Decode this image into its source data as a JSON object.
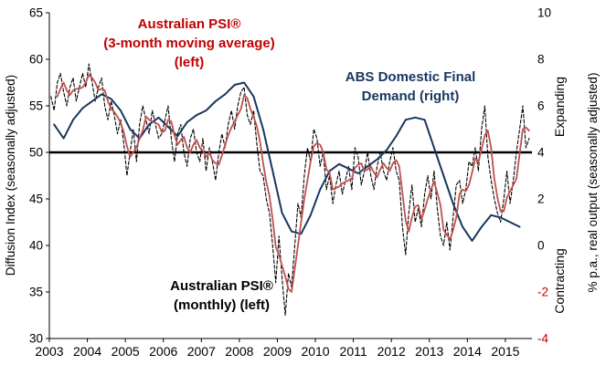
{
  "chart_data": {
    "type": "line",
    "title": "",
    "x_axis": {
      "min": 2003,
      "max": 2015.7,
      "tick_labels": [
        "2003",
        "2004",
        "2005",
        "2006",
        "2007",
        "2008",
        "2009",
        "2010",
        "2011",
        "2012",
        "2013",
        "2014",
        "2015"
      ]
    },
    "left_axis": {
      "label": "Diffusion Index (seasonally adjusted)",
      "min": 30,
      "max": 65,
      "step": 5
    },
    "right_axis": {
      "label": "% p.a., real output (seasonally adjusted)",
      "min": -4,
      "max": 10,
      "step": 2,
      "negative_color": "#c00000"
    },
    "reference_line": {
      "axis": "left",
      "value": 50,
      "color": "#000000"
    },
    "zone_labels": {
      "top": "Expanding",
      "bottom": "Contracting"
    },
    "annotations": {
      "psi_mma": {
        "color": "#c00000",
        "lines": [
          "Australian PSI®",
          "(3-month moving average)",
          "(left)"
        ]
      },
      "demand": {
        "color": "#17375e",
        "lines": [
          "ABS Domestic Final",
          "Demand (right)"
        ]
      },
      "psi_monthly": {
        "color": "#000000",
        "lines": [
          "Australian PSI®",
          "(monthly) (left)"
        ]
      }
    },
    "series": [
      {
        "name": "Australian PSI® (monthly) (left)",
        "axis": "left",
        "color": "#000000",
        "line_style": "dashed",
        "start_year": 2003,
        "frequency": "monthly",
        "values": [
          56.0,
          54.5,
          57.5,
          58.5,
          56.5,
          55.0,
          57.0,
          58.0,
          55.5,
          57.0,
          58.5,
          57.0,
          59.5,
          57.5,
          55.5,
          57.0,
          58.0,
          55.0,
          53.5,
          55.5,
          54.0,
          52.0,
          53.5,
          51.0,
          47.5,
          50.0,
          52.5,
          49.0,
          53.0,
          55.0,
          53.5,
          52.0,
          54.5,
          53.0,
          51.5,
          52.0,
          53.5,
          55.0,
          51.5,
          49.0,
          52.0,
          53.0,
          50.0,
          48.5,
          51.5,
          52.5,
          50.0,
          49.0,
          51.5,
          48.0,
          50.5,
          49.0,
          47.0,
          50.0,
          52.0,
          50.5,
          53.0,
          54.5,
          52.5,
          55.0,
          56.5,
          57.0,
          54.0,
          53.0,
          54.5,
          51.0,
          48.0,
          47.5,
          45.0,
          43.5,
          40.0,
          36.0,
          41.0,
          36.5,
          32.5,
          37.0,
          35.5,
          40.0,
          44.5,
          43.0,
          47.5,
          50.5,
          49.0,
          52.5,
          51.5,
          48.5,
          50.0,
          46.0,
          47.5,
          44.5,
          46.5,
          48.0,
          45.5,
          47.0,
          48.5,
          46.0,
          50.5,
          49.5,
          46.5,
          48.0,
          50.0,
          47.5,
          46.0,
          48.5,
          50.0,
          48.0,
          47.0,
          49.0,
          50.5,
          48.0,
          47.0,
          42.0,
          39.0,
          43.5,
          46.5,
          42.5,
          44.0,
          42.0,
          45.5,
          47.5,
          45.0,
          48.0,
          44.0,
          41.0,
          40.0,
          42.5,
          39.5,
          43.0,
          46.5,
          47.0,
          44.5,
          46.0,
          49.0,
          48.5,
          50.5,
          48.0,
          52.5,
          55.0,
          49.5,
          47.0,
          45.0,
          43.5,
          42.5,
          45.0,
          48.0,
          44.5,
          47.0,
          50.0,
          52.5,
          55.0,
          50.5,
          51.5
        ]
      },
      {
        "name": "Australian PSI® (3-month moving average) (left)",
        "axis": "left",
        "color": "#c0504d",
        "line_style": "solid",
        "derived_from": "Australian PSI® (monthly) (left)",
        "derivation": "3-month moving average of the monthly series"
      },
      {
        "name": "ABS Domestic Final Demand (right)",
        "axis": "right",
        "color": "#17375e",
        "line_style": "solid",
        "start_year": 2003,
        "frequency": "quarterly",
        "values": [
          5.2,
          4.6,
          5.4,
          5.9,
          6.2,
          6.5,
          6.3,
          5.8,
          5.0,
          4.6,
          5.2,
          5.5,
          5.1,
          4.7,
          5.3,
          5.6,
          5.8,
          6.2,
          6.5,
          6.9,
          7.0,
          6.4,
          5.0,
          3.2,
          1.4,
          0.6,
          0.5,
          1.3,
          2.4,
          3.2,
          3.5,
          3.3,
          3.1,
          3.4,
          3.7,
          4.1,
          4.7,
          5.4,
          5.5,
          5.4,
          4.2,
          3.0,
          1.8,
          0.8,
          0.2,
          0.8,
          1.3,
          1.2,
          1.0,
          0.8
        ]
      }
    ]
  }
}
